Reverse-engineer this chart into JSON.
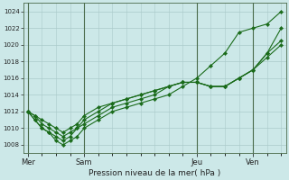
{
  "title": "Pression niveau de la mer( hPa )",
  "bg_color": "#cce8e8",
  "grid_color": "#aacaca",
  "line_color": "#1a6b1a",
  "ylim": [
    1007,
    1025
  ],
  "yticks": [
    1008,
    1010,
    1012,
    1014,
    1016,
    1018,
    1020,
    1022,
    1024
  ],
  "xtick_labels": [
    "Mer",
    "Sam",
    "Jeu",
    "Ven"
  ],
  "xtick_positions": [
    0,
    24,
    72,
    96
  ],
  "total_hours": 108,
  "vline_positions": [
    0,
    24,
    72,
    96
  ],
  "series": [
    {
      "x": [
        0,
        3,
        6,
        9,
        12,
        15,
        18,
        21,
        24,
        30,
        36,
        42,
        48,
        54,
        60,
        66,
        72,
        78,
        84,
        90,
        96,
        102,
        108
      ],
      "y": [
        1012,
        1011,
        1010,
        1009.5,
        1008.5,
        1008,
        1008.5,
        1009,
        1010,
        1011,
        1012,
        1012.5,
        1013,
        1013.5,
        1014,
        1015,
        1016,
        1017.5,
        1019,
        1021.5,
        1022,
        1022.5,
        1024
      ]
    },
    {
      "x": [
        0,
        3,
        6,
        9,
        12,
        15,
        18,
        21,
        24,
        30,
        36,
        42,
        48,
        54,
        60,
        66,
        72,
        78,
        84,
        90,
        96,
        102,
        108
      ],
      "y": [
        1012,
        1011,
        1010,
        1009.5,
        1009,
        1008.5,
        1009,
        1010,
        1010.5,
        1011.5,
        1012.5,
        1013,
        1013.5,
        1014,
        1015,
        1015.5,
        1015.5,
        1015,
        1015,
        1016,
        1017,
        1019,
        1022
      ]
    },
    {
      "x": [
        0,
        3,
        6,
        9,
        12,
        15,
        18,
        21,
        24,
        30,
        36,
        42,
        48,
        54,
        60,
        66,
        72,
        78,
        84,
        90,
        96,
        102,
        108
      ],
      "y": [
        1012,
        1011.5,
        1010.5,
        1010,
        1009.5,
        1009,
        1009.5,
        1010,
        1011,
        1012,
        1013,
        1013.5,
        1014,
        1014.5,
        1015,
        1015.5,
        1015.5,
        1015,
        1015,
        1016,
        1017,
        1019,
        1020.5
      ]
    },
    {
      "x": [
        0,
        3,
        6,
        9,
        12,
        15,
        18,
        21,
        24,
        30,
        36,
        42,
        48,
        54,
        60,
        66,
        72,
        78,
        84,
        90,
        96,
        102,
        108
      ],
      "y": [
        1012,
        1011.5,
        1011,
        1010.5,
        1010,
        1009.5,
        1010,
        1010.5,
        1011.5,
        1012.5,
        1013,
        1013.5,
        1014,
        1014.5,
        1015,
        1015.5,
        1015.5,
        1015,
        1015,
        1016,
        1017,
        1018.5,
        1020
      ]
    }
  ]
}
